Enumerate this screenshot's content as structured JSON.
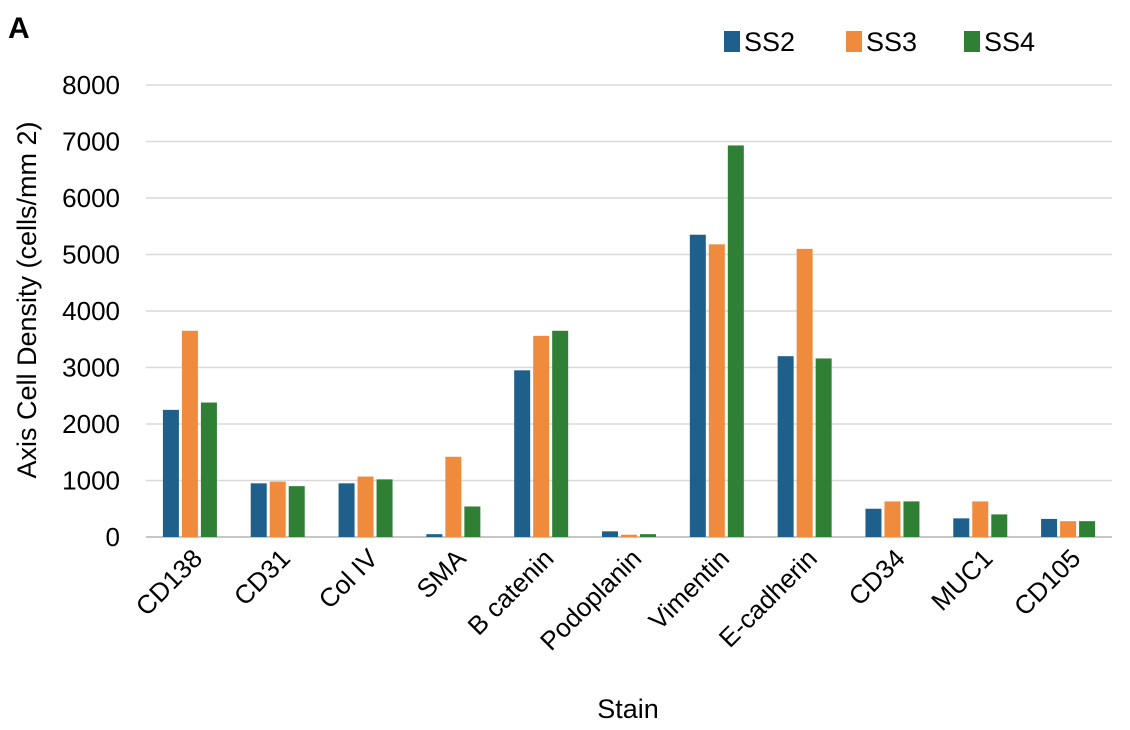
{
  "panel_label": "A",
  "colors": {
    "SS2": "#1f5f8b",
    "SS3": "#f08a3c",
    "SS4": "#2f7f35",
    "grid": "#d9d9d9",
    "axis": "#bfbfbf",
    "text": "#000000"
  },
  "chart_data": {
    "type": "bar",
    "title": "",
    "xlabel": "Stain",
    "ylabel": "Axis Cell Density (cells/mm 2)",
    "ylim": [
      0,
      8000
    ],
    "yticks": [
      0,
      1000,
      2000,
      3000,
      4000,
      5000,
      6000,
      7000,
      8000
    ],
    "grid": true,
    "legend_position": "top-right",
    "categories": [
      "CD138",
      "CD31",
      "Col IV",
      "SMA",
      "B catenin",
      "Podoplanin",
      "Vimentin",
      "E-cadherin",
      "CD34",
      "MUC1",
      "CD105"
    ],
    "series": [
      {
        "name": "SS2",
        "values": [
          2250,
          950,
          950,
          50,
          2950,
          100,
          5350,
          3200,
          500,
          330,
          320
        ]
      },
      {
        "name": "SS3",
        "values": [
          3650,
          980,
          1070,
          1420,
          3560,
          40,
          5180,
          5100,
          630,
          630,
          280
        ]
      },
      {
        "name": "SS4",
        "values": [
          2380,
          900,
          1020,
          540,
          3650,
          50,
          6930,
          3160,
          630,
          400,
          280
        ]
      }
    ]
  }
}
